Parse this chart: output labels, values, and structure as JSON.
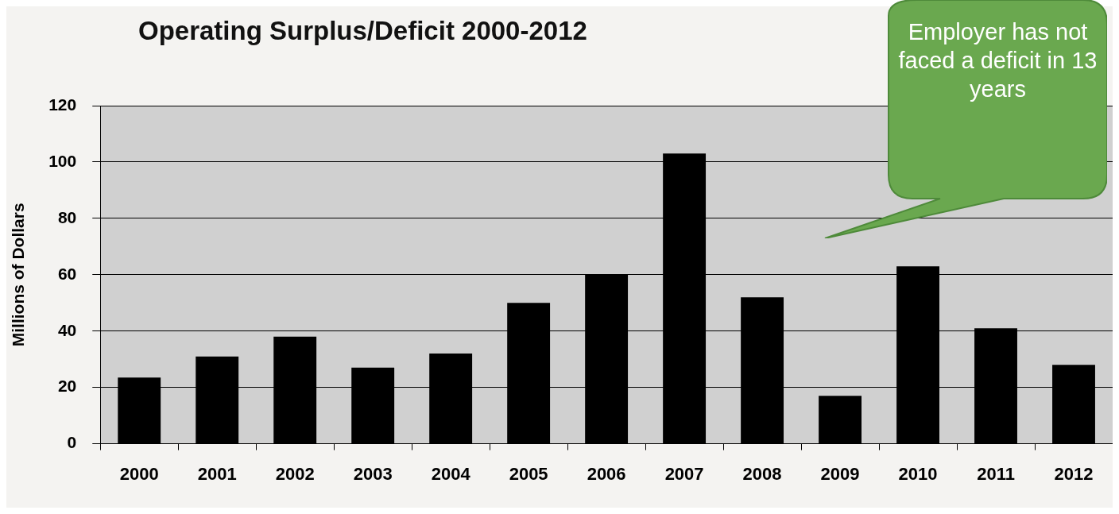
{
  "chart_data": {
    "type": "bar",
    "title": "Operating Surplus/Deficit 2000-2012",
    "ylabel": "Millions of Dollars",
    "categories": [
      "2000",
      "2001",
      "2002",
      "2003",
      "2004",
      "2005",
      "2006",
      "2007",
      "2008",
      "2009",
      "2010",
      "2011",
      "2012"
    ],
    "values": [
      23.5,
      31,
      38,
      27,
      32,
      50,
      60,
      103,
      52,
      17,
      63,
      41,
      28
    ],
    "color": "#000000",
    "ylim": [
      0,
      120
    ],
    "yticks": [
      0,
      20,
      40,
      60,
      80,
      100,
      120
    ],
    "grid": "y",
    "legend": false,
    "annotations": [
      "Employer has not faced a deficit in 13 years"
    ]
  }
}
